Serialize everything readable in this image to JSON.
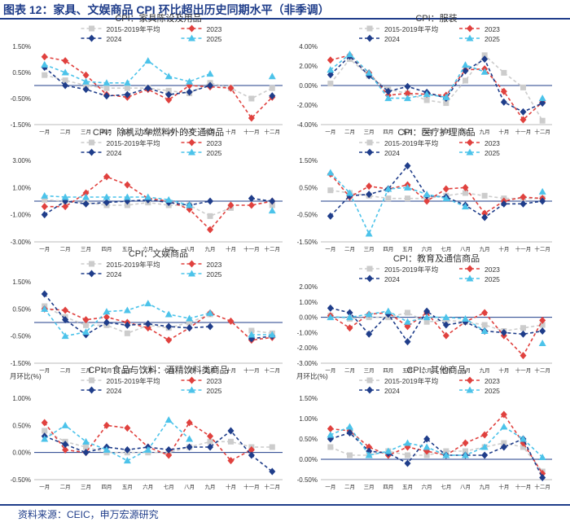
{
  "figure_title": "图表 12：家具、文娱商品 CPI 环比超出历史同期水平（非季调）",
  "source": "资料来源：CEIC，申万宏源研究",
  "months": [
    "一月",
    "二月",
    "三月",
    "四月",
    "五月",
    "六月",
    "七月",
    "八月",
    "九月",
    "十月",
    "十一月",
    "十二月"
  ],
  "series_styles": [
    {
      "name": "2015-2019年平均",
      "color": "#cccccc",
      "marker": "square",
      "dash": "4,3"
    },
    {
      "name": "2023",
      "color": "#e0413e",
      "marker": "diamond",
      "dash": "4,3"
    },
    {
      "name": "2024",
      "color": "#1f3d8a",
      "marker": "diamond",
      "dash": "4,3"
    },
    {
      "name": "2025",
      "color": "#4cc3ea",
      "marker": "triangle",
      "dash": "4,3"
    }
  ],
  "chart_data": [
    {
      "type": "line",
      "title": "CPI：家具陈设及用品",
      "ylabel": "",
      "ylim": [
        -1.5,
        1.5
      ],
      "yticks": [
        1.5,
        0.5,
        -0.5,
        -1.5
      ],
      "tick_labels": [
        "1.50%",
        "0.50%",
        "-0.50%",
        "-1.50%"
      ],
      "series": [
        {
          "name": "2015-2019年平均",
          "values": [
            0.4,
            0.2,
            0.0,
            -0.1,
            -0.1,
            -0.1,
            -0.2,
            -0.3,
            0.1,
            -0.1,
            -0.5,
            -0.1
          ]
        },
        {
          "name": "2023",
          "values": [
            1.1,
            0.95,
            0.4,
            -0.35,
            -0.45,
            -0.15,
            -0.55,
            0.0,
            -0.05,
            -0.1,
            -1.25,
            -0.45
          ]
        },
        {
          "name": "2024",
          "values": [
            0.7,
            0.0,
            -0.15,
            -0.4,
            -0.35,
            -0.1,
            -0.35,
            -0.25,
            0.0,
            null,
            null,
            -0.4
          ]
        },
        {
          "name": "2025",
          "values": [
            0.8,
            0.5,
            0.15,
            0.1,
            0.1,
            0.95,
            0.35,
            0.15,
            0.45,
            null,
            null,
            0.35
          ]
        }
      ]
    },
    {
      "type": "line",
      "title": "CPI：服装",
      "ylabel": "",
      "ylim": [
        -4,
        4
      ],
      "yticks": [
        4,
        2,
        0,
        -2,
        -4
      ],
      "tick_labels": [
        "4.00%",
        "2.00%",
        "0.00%",
        "-2.00%",
        "-4.00%"
      ],
      "series": [
        {
          "name": "2015-2019年平均",
          "values": [
            0.2,
            2.7,
            1.0,
            -0.4,
            -0.8,
            -1.5,
            -1.8,
            0.5,
            3.1,
            1.3,
            -0.2,
            -3.6
          ]
        },
        {
          "name": "2023",
          "values": [
            2.6,
            3.1,
            1.3,
            -1.0,
            -0.8,
            -0.9,
            -1.0,
            1.6,
            1.7,
            -0.6,
            -3.5,
            -1.7
          ]
        },
        {
          "name": "2024",
          "values": [
            1.1,
            3.0,
            1.0,
            -0.6,
            -0.1,
            -0.7,
            -1.3,
            1.5,
            2.7,
            -1.7,
            -2.7,
            -1.8
          ]
        },
        {
          "name": "2025",
          "values": [
            1.6,
            3.2,
            1.3,
            -1.3,
            -1.3,
            -0.9,
            -1.2,
            2.1,
            1.4,
            null,
            null,
            -1.3
          ]
        }
      ]
    },
    {
      "type": "line",
      "title": "CPI：除机动车燃料外的交通商品",
      "ylabel": "",
      "ylim": [
        -3,
        3
      ],
      "yticks": [
        3,
        1,
        -1,
        -3
      ],
      "tick_labels": [
        "3.00%",
        "1.00%",
        "-1.00%",
        "-3.00%"
      ],
      "series": [
        {
          "name": "2015-2019年平均",
          "values": [
            0.1,
            0.0,
            -0.1,
            -0.3,
            -0.3,
            -0.1,
            -0.3,
            -0.3,
            -1.1,
            -0.5,
            null,
            -0.3
          ]
        },
        {
          "name": "2023",
          "values": [
            -0.4,
            -0.4,
            0.6,
            1.8,
            1.2,
            0.2,
            0.0,
            -0.6,
            -2.1,
            -0.3,
            -0.3,
            0.0
          ]
        },
        {
          "name": "2024",
          "values": [
            -1.0,
            0.0,
            -0.2,
            -0.1,
            0.0,
            0.1,
            -0.1,
            -0.3,
            0.0,
            null,
            0.2,
            0.0
          ]
        },
        {
          "name": "2025",
          "values": [
            0.4,
            0.3,
            0.3,
            0.3,
            0.3,
            0.3,
            0.1,
            -0.3,
            null,
            null,
            null,
            -0.7
          ]
        }
      ]
    },
    {
      "type": "line",
      "title": "CPI：医疗护理商品",
      "ylabel": "",
      "ylim": [
        -1.5,
        1.5
      ],
      "yticks": [
        1.5,
        0.5,
        -0.5,
        -1.5
      ],
      "tick_labels": [
        "1.50%",
        "0.50%",
        "-0.50%",
        "-1.50%"
      ],
      "series": [
        {
          "name": "2015-2019年平均",
          "values": [
            0.4,
            0.3,
            0.2,
            0.1,
            0.1,
            0.1,
            0.2,
            0.3,
            0.2,
            0.1,
            0.1,
            0.1
          ]
        },
        {
          "name": "2023",
          "values": [
            1.0,
            0.15,
            0.55,
            0.45,
            0.6,
            0.0,
            0.45,
            0.5,
            -0.45,
            0.0,
            0.15,
            0.1
          ]
        },
        {
          "name": "2024",
          "values": [
            -0.55,
            0.2,
            0.25,
            0.45,
            1.3,
            0.2,
            0.15,
            -0.15,
            -0.6,
            -0.1,
            -0.1,
            0.0
          ]
        },
        {
          "name": "2025",
          "values": [
            1.05,
            0.3,
            -1.2,
            0.45,
            0.5,
            0.25,
            0.1,
            -0.2,
            null,
            null,
            null,
            0.35
          ]
        }
      ]
    },
    {
      "type": "line",
      "title": "CPI：文娱商品",
      "ylabel": "",
      "ylim": [
        -1.5,
        1.5
      ],
      "yticks": [
        1.5,
        0.5,
        -0.5,
        -1.5
      ],
      "tick_labels": [
        "1.50%",
        "0.50%",
        "-0.50%",
        "-1.50%"
      ],
      "series": [
        {
          "name": "2015-2019年平均",
          "values": [
            0.6,
            0.2,
            -0.1,
            -0.1,
            -0.4,
            -0.1,
            -0.2,
            0.0,
            0.3,
            null,
            -0.3,
            -0.4
          ]
        },
        {
          "name": "2023",
          "values": [
            0.5,
            0.45,
            0.1,
            0.2,
            0.0,
            -0.2,
            -0.65,
            -0.2,
            0.35,
            0.05,
            -0.65,
            -0.55
          ]
        },
        {
          "name": "2024",
          "values": [
            1.05,
            0.1,
            -0.45,
            0.0,
            -0.1,
            -0.05,
            -0.15,
            -0.2,
            -0.15,
            null,
            -0.6,
            -0.5
          ]
        },
        {
          "name": "2025",
          "values": [
            0.5,
            -0.5,
            -0.35,
            0.4,
            0.45,
            0.7,
            0.3,
            0.15,
            0.35,
            null,
            -0.45,
            -0.45
          ]
        }
      ]
    },
    {
      "type": "line",
      "title": "CPI：教育及通信商品",
      "ylabel": "",
      "ylim": [
        -3,
        2
      ],
      "yticks": [
        2,
        1,
        0,
        -1,
        -2,
        -3
      ],
      "tick_labels": [
        "2.00%",
        "1.00%",
        "0.00%",
        "-1.00%",
        "-2.00%",
        "-3.00%"
      ],
      "series": [
        {
          "name": "2015-2019年平均",
          "values": [
            0.1,
            -0.1,
            0.0,
            0.0,
            0.3,
            -0.3,
            -0.2,
            -0.3,
            -0.5,
            -0.9,
            -0.7,
            -0.5
          ]
        },
        {
          "name": "2023",
          "values": [
            0.1,
            -0.7,
            0.2,
            0.3,
            -0.6,
            0.3,
            -1.2,
            -0.3,
            0.3,
            -1.2,
            -2.5,
            -0.2
          ]
        },
        {
          "name": "2024",
          "values": [
            0.6,
            0.3,
            -1.1,
            0.2,
            -1.6,
            0.4,
            -0.5,
            -0.3,
            -0.9,
            -1.0,
            -1.1,
            -0.9
          ]
        },
        {
          "name": "2025",
          "values": [
            0.0,
            0.0,
            0.2,
            0.4,
            -0.3,
            0.0,
            0.0,
            -0.1,
            -0.9,
            null,
            null,
            -1.7
          ]
        }
      ]
    },
    {
      "type": "line",
      "title": "CPI：食品与饮料：酒精饮料类商品",
      "ylabel": "月环比(%)",
      "ylim": [
        -0.5,
        1.0
      ],
      "yticks": [
        1.0,
        0.5,
        0.0,
        -0.5
      ],
      "tick_labels": [
        "1.00%",
        "0.50%",
        "0.00%",
        "-0.50%"
      ],
      "series": [
        {
          "name": "2015-2019年平均",
          "values": [
            0.4,
            0.2,
            0.1,
            0.0,
            0.0,
            0.0,
            0.0,
            0.1,
            0.2,
            0.2,
            0.1,
            0.1
          ]
        },
        {
          "name": "2023",
          "values": [
            0.55,
            0.05,
            0.0,
            0.5,
            0.45,
            0.1,
            -0.05,
            0.55,
            0.3,
            -0.15,
            0.05,
            null
          ]
        },
        {
          "name": "2024",
          "values": [
            0.3,
            0.15,
            0.0,
            0.1,
            0.05,
            0.1,
            0.05,
            0.1,
            0.1,
            0.4,
            -0.05,
            -0.35
          ]
        },
        {
          "name": "2025",
          "values": [
            0.25,
            0.5,
            0.2,
            0.05,
            -0.15,
            0.05,
            0.6,
            0.25,
            null,
            null,
            null,
            null
          ]
        }
      ]
    },
    {
      "type": "line",
      "title": "CPI：其他商品",
      "ylabel": "月环比(%)",
      "ylim": [
        -0.5,
        1.5
      ],
      "yticks": [
        1.5,
        1.0,
        0.5,
        0.0,
        -0.5
      ],
      "tick_labels": [
        "1.50%",
        "1.00%",
        "0.50%",
        "0.00%",
        "-0.50%"
      ],
      "series": [
        {
          "name": "2015-2019年平均",
          "values": [
            0.3,
            0.1,
            0.1,
            0.2,
            0.1,
            0.1,
            0.2,
            0.2,
            0.3,
            0.4,
            0.3,
            -0.3
          ]
        },
        {
          "name": "2023",
          "values": [
            0.75,
            0.7,
            0.3,
            0.1,
            0.3,
            0.2,
            0.1,
            0.4,
            0.6,
            1.1,
            0.4,
            -0.35
          ]
        },
        {
          "name": "2024",
          "values": [
            0.5,
            0.65,
            0.2,
            0.15,
            -0.1,
            0.5,
            0.1,
            0.1,
            0.1,
            0.3,
            0.5,
            -0.45
          ]
        },
        {
          "name": "2025",
          "values": [
            0.6,
            0.8,
            0.1,
            0.2,
            0.4,
            0.3,
            0.1,
            0.1,
            0.3,
            0.8,
            0.5,
            0.05
          ]
        }
      ]
    }
  ]
}
